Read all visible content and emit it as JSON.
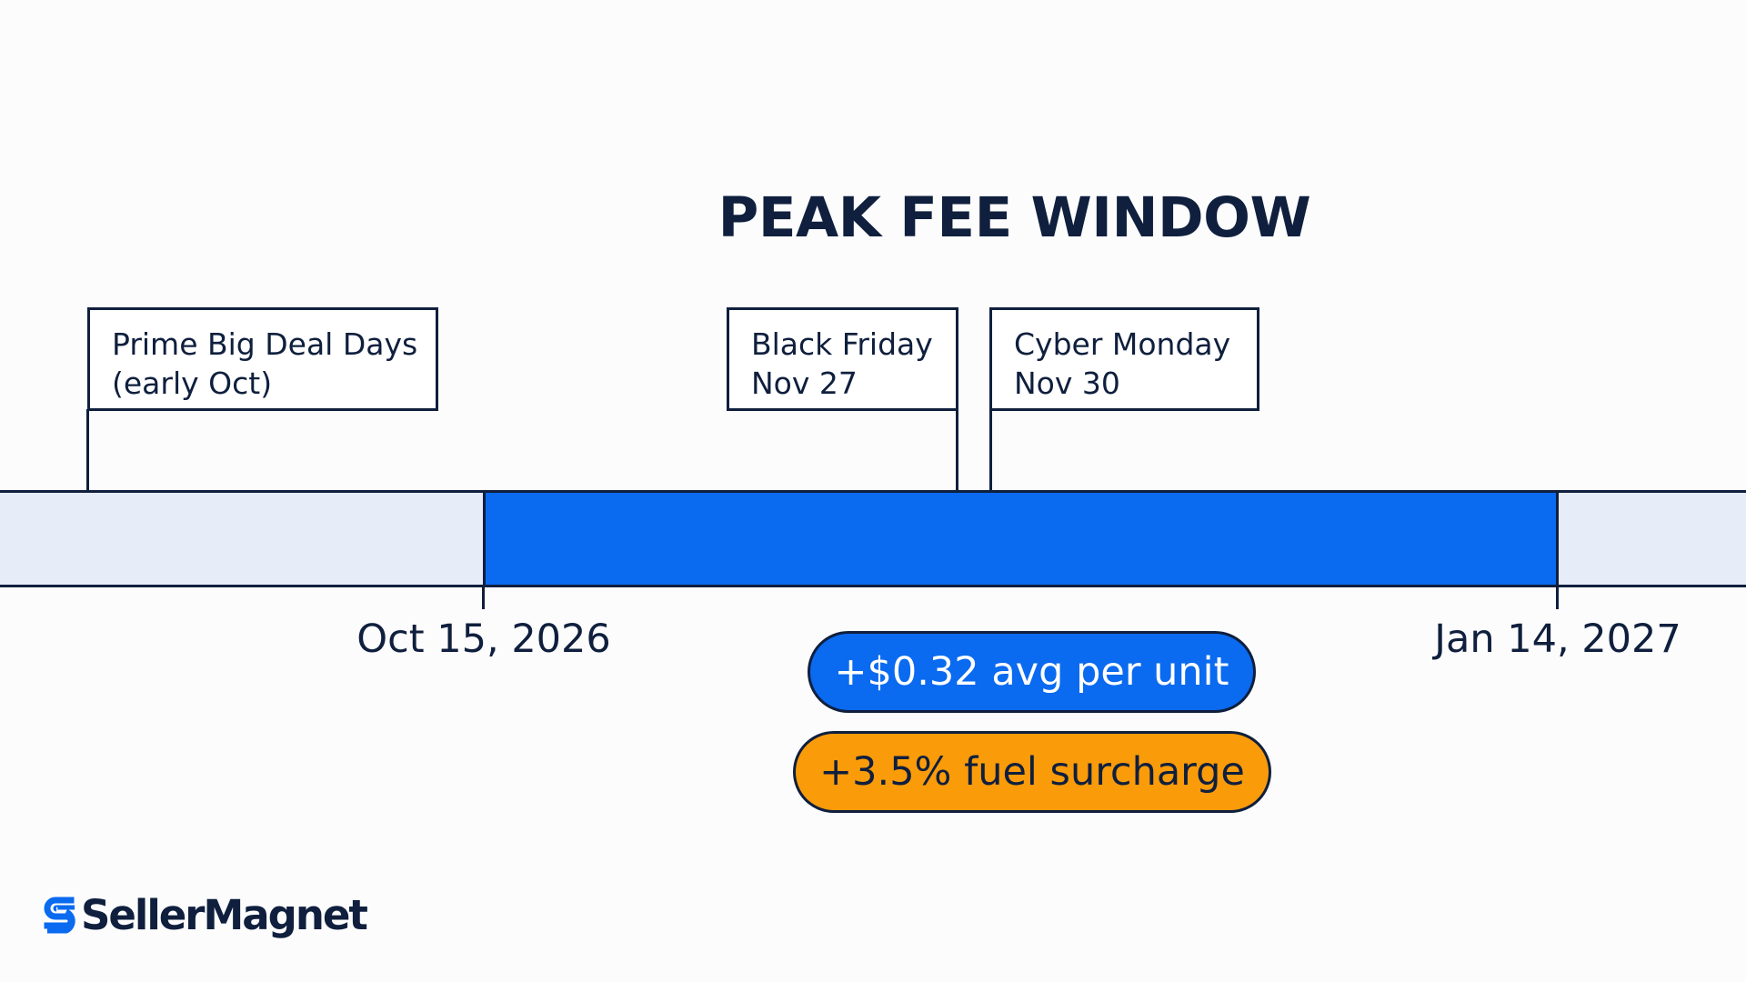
{
  "title": "PEAK FEE WINDOW",
  "events": [
    {
      "line1": "Prime Big Deal Days",
      "line2": "(early Oct)"
    },
    {
      "line1": "Black Friday",
      "line2": "Nov 27"
    },
    {
      "line1": "Cyber Monday",
      "line2": "Nov 30"
    }
  ],
  "window": {
    "start_label": "Oct 15, 2026",
    "end_label": "Jan 14, 2027"
  },
  "badges": {
    "per_unit": "+$0.32 avg per unit",
    "fuel": "+3.5% fuel surcharge"
  },
  "brand": {
    "name": "SellerMagnet",
    "icon": "s-logo-icon"
  },
  "colors": {
    "navy": "#0f1f3d",
    "peak_blue": "#0a6af0",
    "track": "#e6ecf8",
    "orange": "#fa9b0a"
  }
}
